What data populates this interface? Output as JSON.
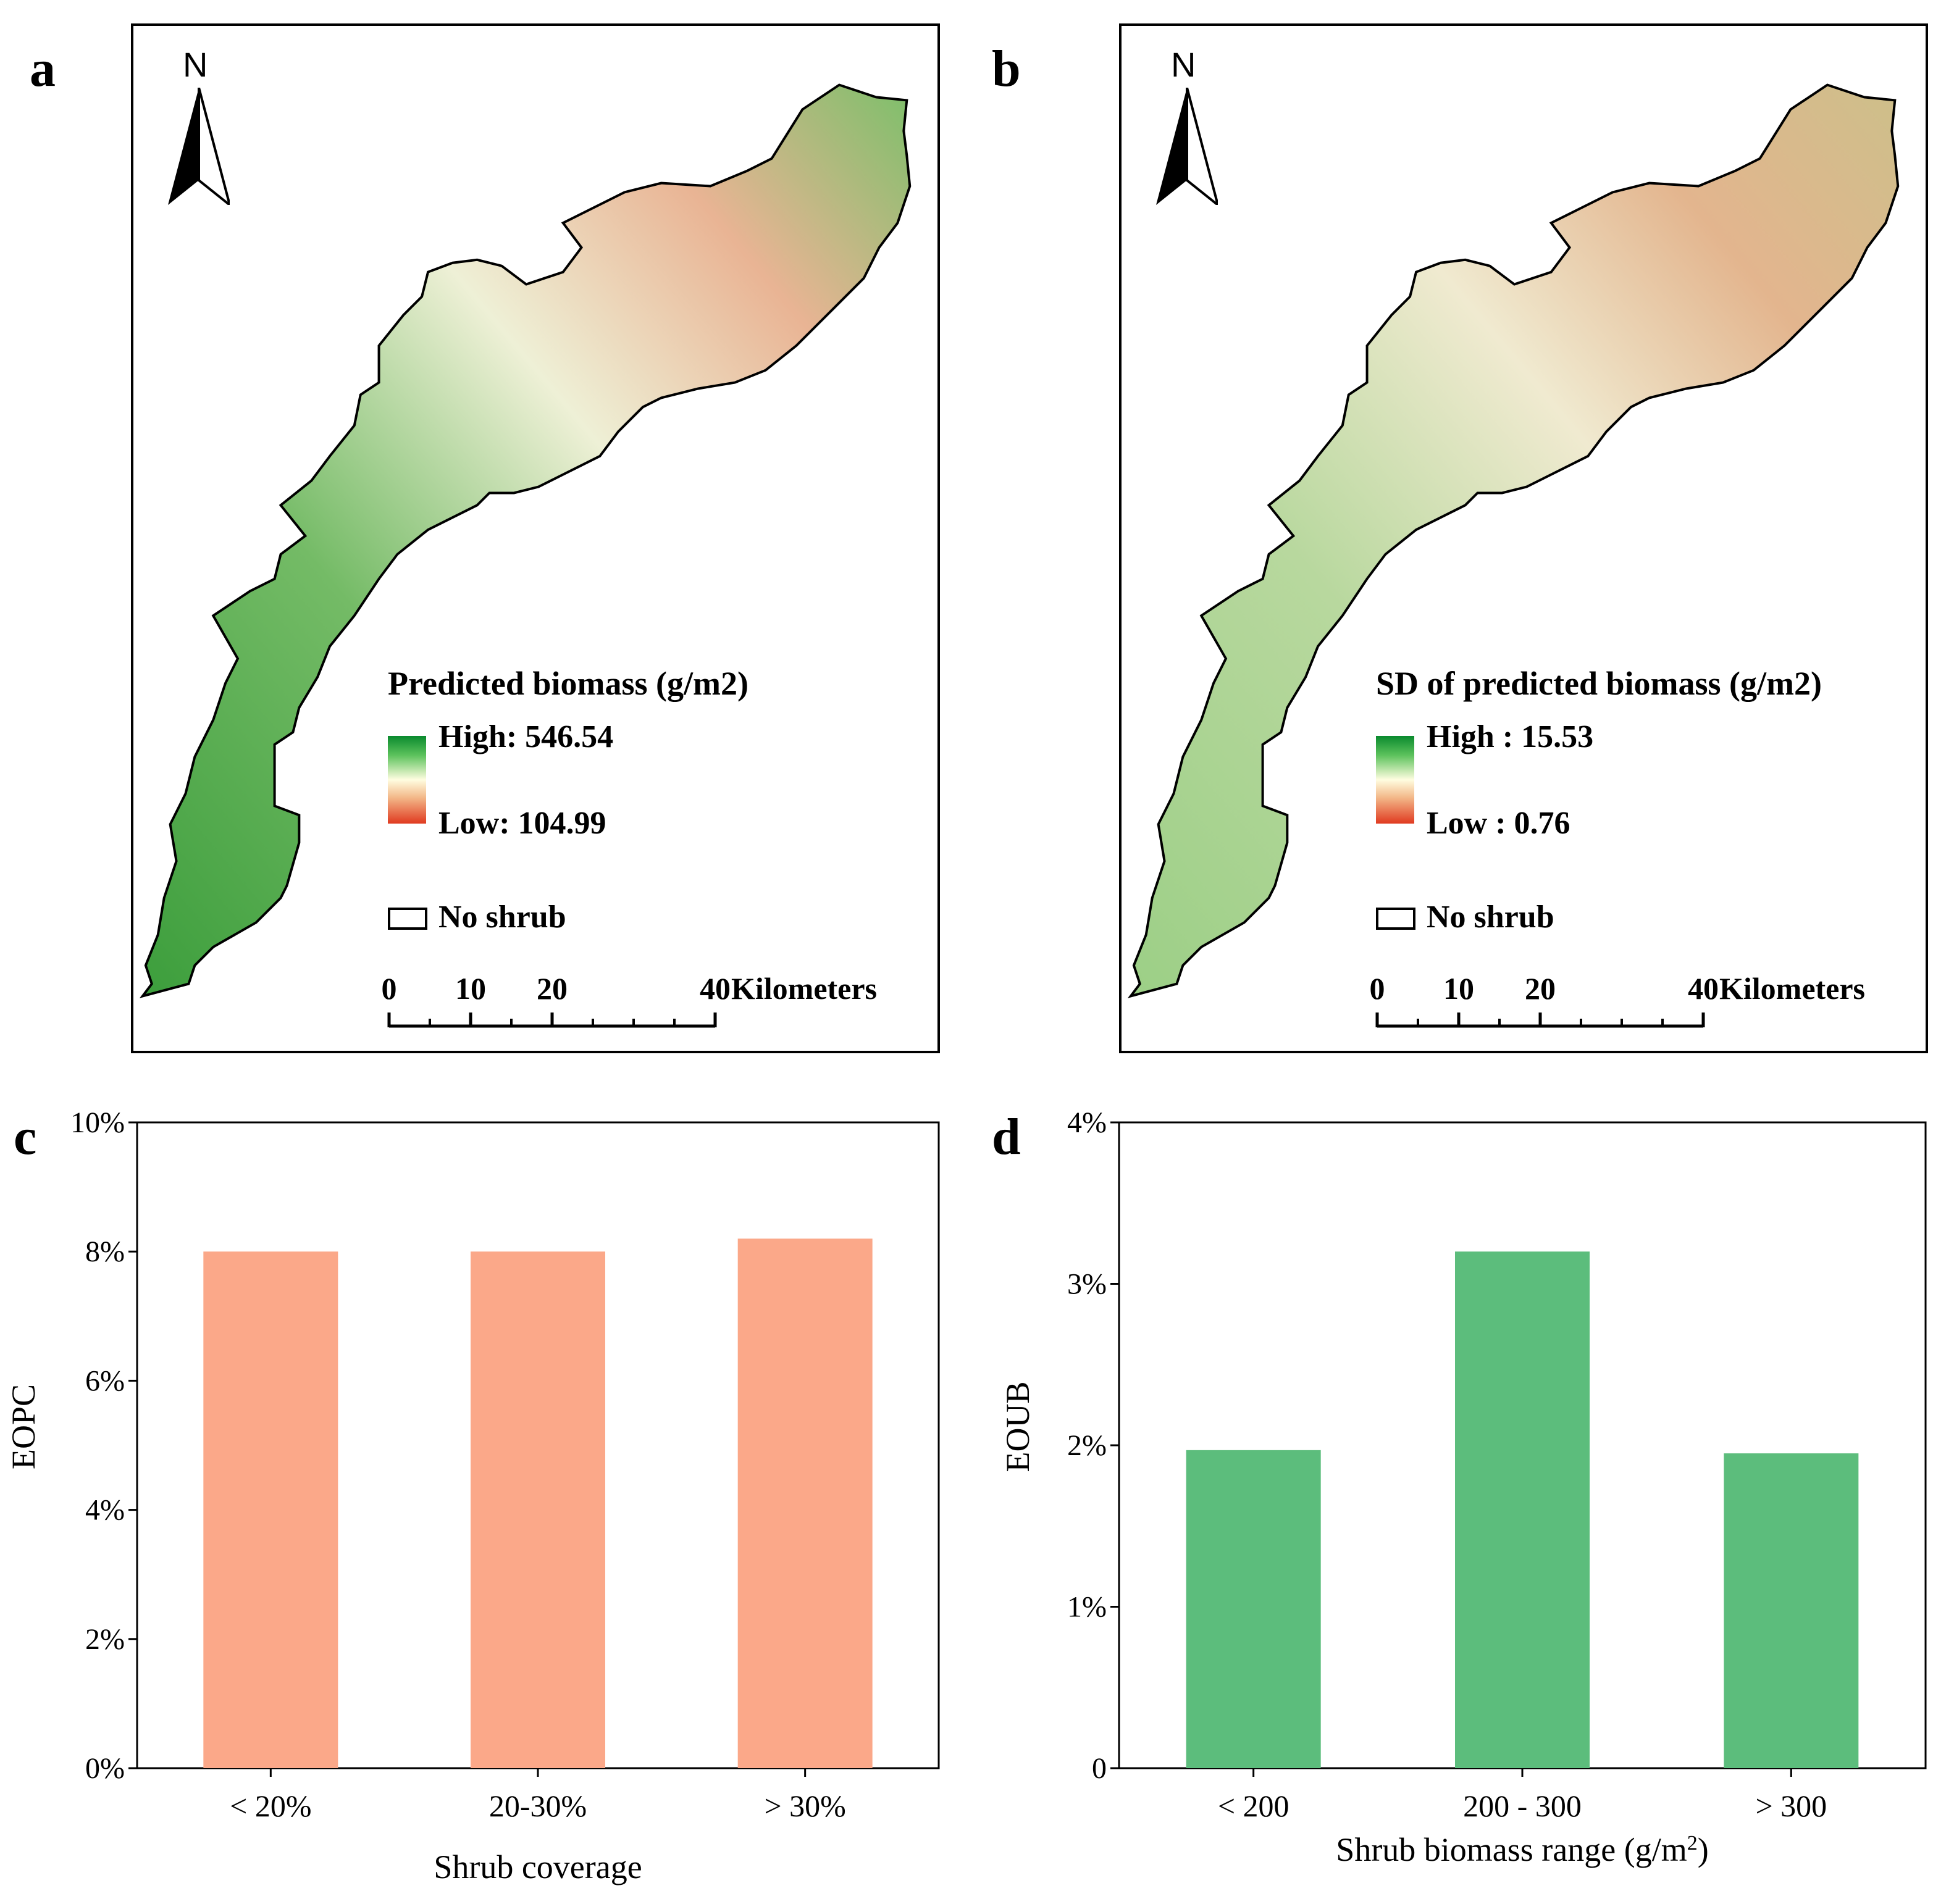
{
  "panels": {
    "a": {
      "letter": "a",
      "north_label": "N",
      "legend_title": "Predicted biomass (g/m2)",
      "high_label": "High: 546.54",
      "low_label": "Low: 104.99",
      "no_shrub_label": "No shrub",
      "scale_ticks": [
        "0",
        "10",
        "20",
        "40"
      ],
      "scale_unit": "Kilometers"
    },
    "b": {
      "letter": "b",
      "north_label": "N",
      "legend_title": "SD of predicted biomass (g/m2)",
      "high_label": "High : 15.53",
      "low_label": "Low : 0.76",
      "no_shrub_label": "No shrub",
      "scale_ticks": [
        "0",
        "10",
        "20",
        "40"
      ],
      "scale_unit": "Kilometers"
    },
    "c": {
      "letter": "c"
    },
    "d": {
      "letter": "d"
    }
  },
  "colors": {
    "bar_c": "#fba889",
    "bar_d": "#5cbd7c",
    "map_high": "#0a8a2e",
    "map_low": "#e03a20"
  },
  "chart_data": [
    {
      "type": "bar",
      "panel": "c",
      "categories": [
        "< 20%",
        "20-30%",
        "> 30%"
      ],
      "values": [
        8.0,
        8.0,
        8.2
      ],
      "ylim": [
        0,
        10
      ],
      "yticks": [
        "0%",
        "2%",
        "4%",
        "6%",
        "8%",
        "10%"
      ],
      "ytick_values": [
        0,
        2,
        4,
        6,
        8,
        10
      ],
      "xlabel": "Shrub coverage",
      "ylabel": "EOPC"
    },
    {
      "type": "bar",
      "panel": "d",
      "categories": [
        "< 200",
        "200 - 300",
        "> 300"
      ],
      "values": [
        1.97,
        3.2,
        1.95
      ],
      "ylim": [
        0,
        4
      ],
      "yticks": [
        "0",
        "1%",
        "2%",
        "3%",
        "4%"
      ],
      "ytick_values": [
        0,
        1,
        2,
        3,
        4
      ],
      "xlabel": "Shrub biomass range (g/m",
      "xlabel_sup": "2",
      "xlabel_end": ")",
      "ylabel": "EOUB"
    }
  ]
}
